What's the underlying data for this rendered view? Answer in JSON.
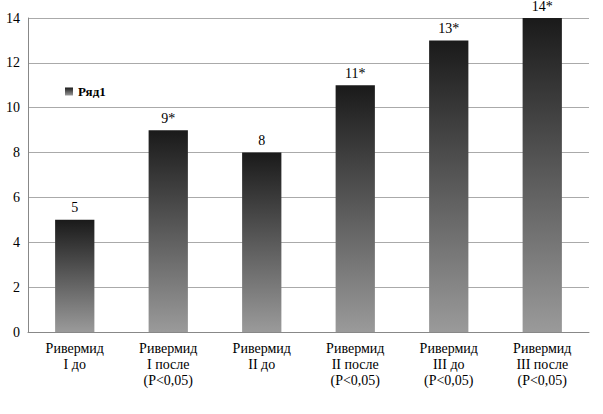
{
  "chart_data": {
    "type": "bar",
    "categories": [
      "Ривермид\nI до",
      "Ривермид\nI после\n(P<0,05)",
      "Ривермид\nII до",
      "Ривермид\nII после\n(P<0,05)",
      "Ривермид\nIII до\n(P<0,05)",
      "Ривермид\nIII после\n(P<0,05)"
    ],
    "series": [
      {
        "name": "Ряд1",
        "color": "#1a1a1a",
        "values": [
          5,
          9,
          8,
          11,
          13,
          14
        ],
        "value_labels": [
          "5",
          "9*",
          "8",
          "11*",
          "13*",
          "14*"
        ]
      }
    ],
    "ylim": [
      0,
      14
    ],
    "yticks": [
      0,
      2,
      4,
      6,
      8,
      10,
      12,
      14
    ],
    "grid": true,
    "legend": "top-left",
    "data_labels": true
  }
}
